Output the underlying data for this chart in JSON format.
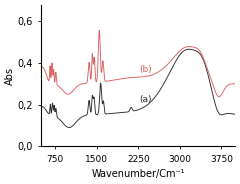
{
  "xlabel": "Wavenumber/Cm⁻¹",
  "ylabel": "Abs",
  "xlim": [
    500,
    4000
  ],
  "ylim": [
    0.0,
    0.68
  ],
  "xticks": [
    750,
    1500,
    2250,
    3000,
    3750
  ],
  "yticks": [
    0.0,
    0.2,
    0.4,
    0.6
  ],
  "yticklabels": [
    "0,0",
    "0,2",
    "0,4",
    "0,6"
  ],
  "color_a": "#2a2a2a",
  "color_b": "#d95f5f",
  "label_a": "(a)",
  "label_b": "(b)"
}
